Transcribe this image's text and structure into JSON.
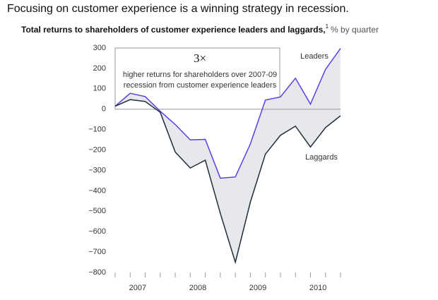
{
  "chart_data": {
    "type": "line",
    "title": "Focusing on customer experience is a winning strategy in recession.",
    "subtitle": "Total returns to shareholders of customer experience leaders and laggards,",
    "footnote_mark": "1",
    "unit_label": "% by quarter",
    "categories": [
      null,
      null,
      null,
      null,
      null,
      null,
      null,
      null,
      null,
      null,
      null,
      null,
      null,
      null,
      null,
      null
    ],
    "year_labels": [
      "2007",
      "2008",
      "2009",
      "2010"
    ],
    "series": [
      {
        "name": "Leaders",
        "color": "#5a3ee6",
        "values": [
          15,
          78,
          62,
          -10,
          -75,
          -150,
          -148,
          -338,
          -332,
          -170,
          45,
          60,
          152,
          25,
          195,
          298
        ]
      },
      {
        "name": "Laggards",
        "color": "#1f2d3d",
        "values": [
          15,
          47,
          38,
          -15,
          -210,
          -288,
          -250,
          -510,
          -750,
          -455,
          -220,
          -128,
          -83,
          -185,
          -90,
          -32
        ]
      }
    ],
    "fill_between": true,
    "ylim": [
      -800,
      300
    ],
    "yticks": [
      {
        "value": -800,
        "label": "−800"
      },
      {
        "value": -700,
        "label": "−700"
      },
      {
        "value": -600,
        "label": "−600"
      },
      {
        "value": -500,
        "label": "−500"
      },
      {
        "value": -400,
        "label": "−400"
      },
      {
        "value": -300,
        "label": "−300"
      },
      {
        "value": -200,
        "label": "−200"
      },
      {
        "value": -100,
        "label": "−100"
      },
      0,
      100,
      200,
      300
    ],
    "annotation": {
      "headline": "3×",
      "lines": [
        "higher returns for shareholders over 2007-09",
        "recession from customer experience leaders"
      ]
    }
  }
}
